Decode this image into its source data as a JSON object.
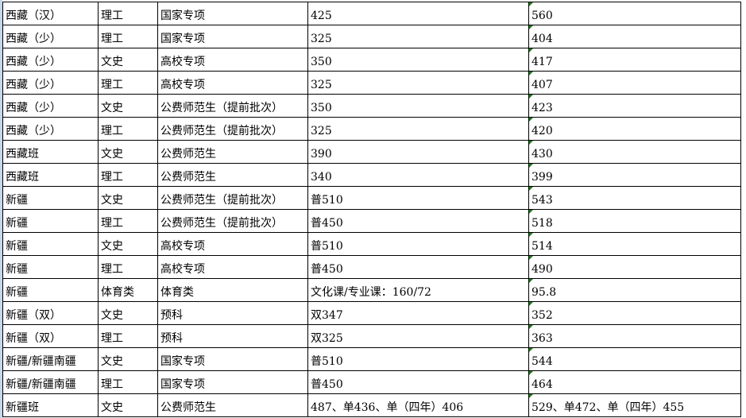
{
  "accent_colors": {
    "comment_marker": "#1f7a1f",
    "row_header_strip": "#c5d6ee"
  },
  "rows": [
    [
      "西藏（汉）",
      "理工",
      "国家专项",
      "425",
      "560"
    ],
    [
      "西藏（少）",
      "理工",
      "国家专项",
      "325",
      "404"
    ],
    [
      "西藏（少）",
      "文史",
      "高校专项",
      "350",
      "417"
    ],
    [
      "西藏（少）",
      "理工",
      "高校专项",
      "325",
      "407"
    ],
    [
      "西藏（少）",
      "文史",
      "公费师范生（提前批次）",
      "350",
      "423"
    ],
    [
      "西藏（少）",
      "理工",
      "公费师范生（提前批次）",
      "325",
      "420"
    ],
    [
      "西藏班",
      "文史",
      "公费师范生",
      "390",
      "430"
    ],
    [
      "西藏班",
      "理工",
      "公费师范生",
      "340",
      "399"
    ],
    [
      "新疆",
      "文史",
      "公费师范生（提前批次）",
      "普510",
      "543"
    ],
    [
      "新疆",
      "理工",
      "公费师范生（提前批次）",
      "普450",
      "518"
    ],
    [
      "新疆",
      "文史",
      "高校专项",
      "普510",
      "514"
    ],
    [
      "新疆",
      "理工",
      "高校专项",
      "普450",
      "490"
    ],
    [
      "新疆",
      "体育类",
      "体育类",
      "文化课/专业课：160/72",
      "95.8"
    ],
    [
      "新疆（双）",
      "文史",
      "预科",
      "双347",
      "352"
    ],
    [
      "新疆（双）",
      "理工",
      "预科",
      "双325",
      "363"
    ],
    [
      "新疆/新疆南疆",
      "文史",
      "国家专项",
      "普510",
      "544"
    ],
    [
      "新疆/新疆南疆",
      "理工",
      "国家专项",
      "普450",
      "464"
    ],
    [
      "新疆班",
      "文史",
      "公费师范生",
      "487、单436、单（四年）406",
      "529、单472、单（四年）455"
    ]
  ]
}
